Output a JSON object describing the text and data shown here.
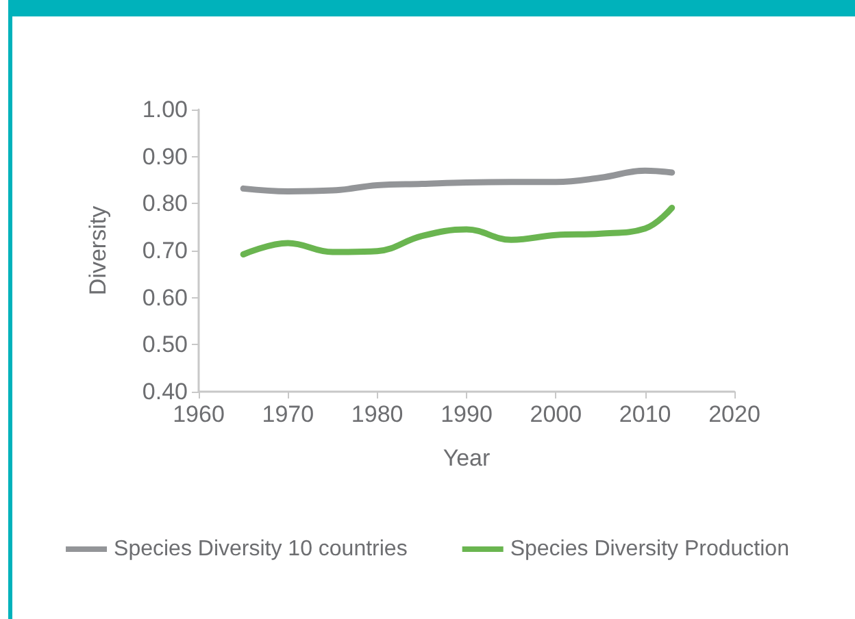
{
  "chart_data": {
    "type": "line",
    "xlabel": "Year",
    "ylabel": "Diversity",
    "xlim": [
      1960,
      2020
    ],
    "xticks": [
      1960,
      1970,
      1980,
      1990,
      2000,
      2010,
      2020
    ],
    "ylim": [
      0.4,
      1.0
    ],
    "yticks": [
      {
        "value": 0.4,
        "label": "0.40"
      },
      {
        "value": 0.5,
        "label": "0.50"
      },
      {
        "value": 0.6,
        "label": "0.60"
      },
      {
        "value": 0.7,
        "label": "0.70"
      },
      {
        "value": 0.8,
        "label": "0.80"
      },
      {
        "value": 0.9,
        "label": "0.90"
      },
      {
        "value": 1.0,
        "label": "1.00"
      }
    ],
    "grid": false,
    "legend": "bottom",
    "marker": "none",
    "line_style": "solid",
    "x": [
      1965,
      1970,
      1975,
      1980,
      1985,
      1990,
      1995,
      2000,
      2005,
      2010,
      2013
    ],
    "series": [
      {
        "name": "Species Diversity 10 countries",
        "color": "#939598",
        "values": [
          0.832,
          0.826,
          0.828,
          0.839,
          0.842,
          0.845,
          0.846,
          0.846,
          0.855,
          0.87,
          0.866
        ]
      },
      {
        "name": "Species Diversity Production",
        "color": "#6ab550",
        "values": [
          0.692,
          0.716,
          0.697,
          0.699,
          0.731,
          0.745,
          0.723,
          0.733,
          0.736,
          0.747,
          0.791
        ]
      }
    ]
  }
}
